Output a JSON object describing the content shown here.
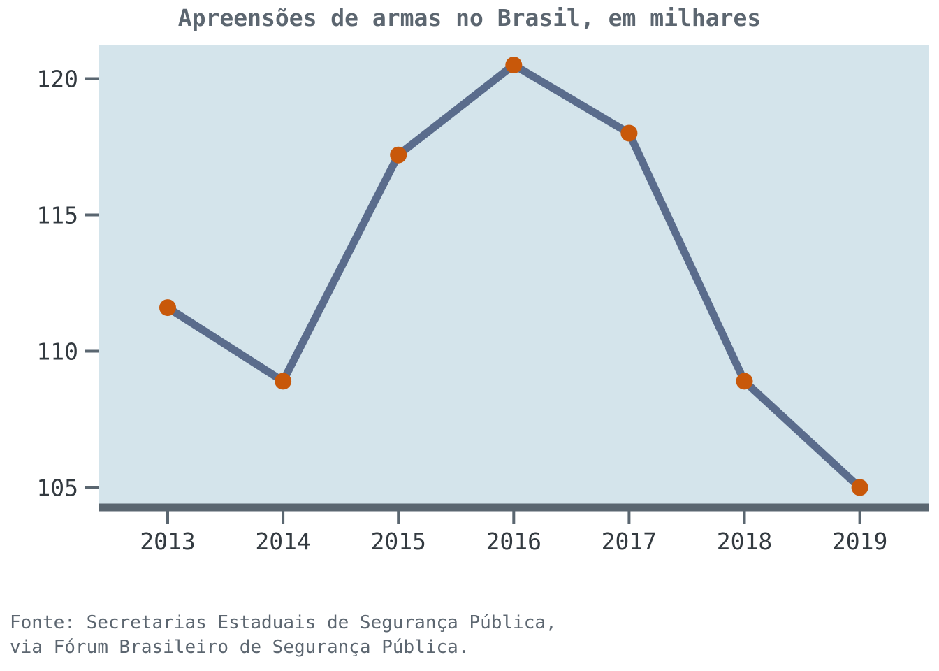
{
  "chart_data": {
    "type": "line",
    "title": "Apreensões de armas no Brasil, em milhares",
    "xlabel": "",
    "ylabel": "",
    "categories": [
      "2013",
      "2014",
      "2015",
      "2016",
      "2017",
      "2018",
      "2019"
    ],
    "series": [
      {
        "values": [
          111.6,
          108.9,
          117.2,
          120.5,
          118.0,
          108.9,
          105.0
        ]
      }
    ],
    "y_ticks": [
      105,
      110,
      115,
      120
    ],
    "ylim": [
      104.3,
      121.3
    ],
    "grid": false,
    "legend": "none"
  },
  "colors": {
    "plot_background": "#d4e4eb",
    "line": "#5a6c8c",
    "markers": "#c8580a",
    "axis": "#5a6670",
    "text": "#333a40",
    "title": "#5c6670"
  },
  "source": {
    "line1": "Fonte: Secretarias Estaduais de Segurança Pública,",
    "line2": "via Fórum Brasileiro de Segurança Pública."
  }
}
